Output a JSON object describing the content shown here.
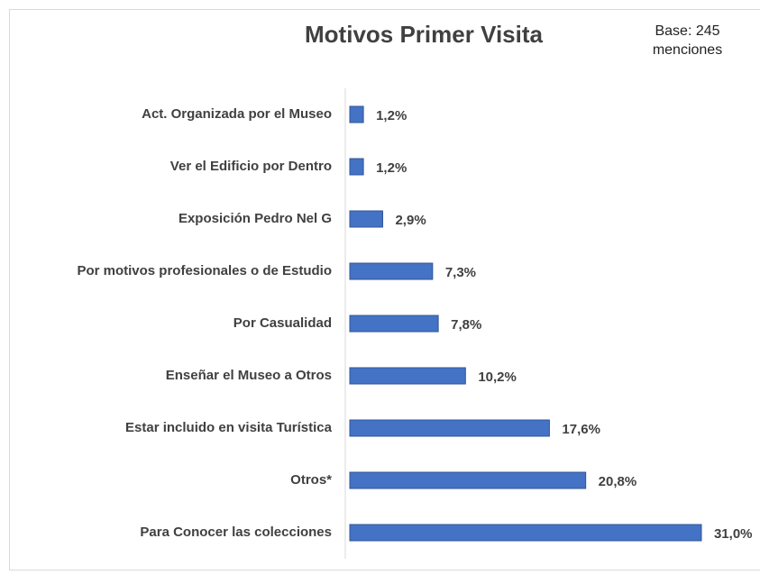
{
  "chart_data": {
    "type": "bar",
    "orientation": "horizontal",
    "title": "Motivos Primer Visita",
    "subtitle": "Base: 245 menciones",
    "categories": [
      "Act. Organizada por el Museo",
      "Ver el Edificio por Dentro",
      "Exposición Pedro Nel G",
      "Por motivos profesionales o de Estudio",
      "Por Casualidad",
      "Enseñar el Museo a Otros",
      "Estar incluido en visita Turística",
      "Otros*",
      "Para Conocer las colecciones"
    ],
    "values": [
      1.2,
      1.2,
      2.9,
      7.3,
      7.8,
      10.2,
      17.6,
      20.8,
      31.0
    ],
    "value_labels": [
      "1,2%",
      "1,2%",
      "2,9%",
      "7,3%",
      "7,8%",
      "10,2%",
      "17,6%",
      "20,8%",
      "31,0%"
    ],
    "color": "#4472c4"
  }
}
